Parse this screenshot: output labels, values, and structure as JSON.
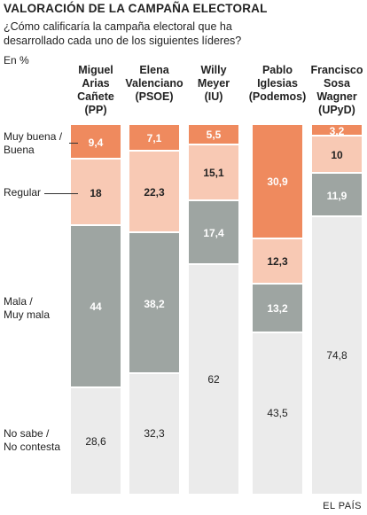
{
  "title": "VALORACIÓN DE LA CAMPAÑA ELECTORAL",
  "question": "¿Cómo calificaría la campaña electoral que ha desarrollado cada uno de los siguientes líderes?",
  "unit": "En %",
  "source": "EL PAÍS",
  "colors": {
    "muy_buena": "#ef8a5e",
    "regular": "#f8c9b4",
    "mala": "#9ea5a2",
    "no_sabe": "#ebebeb"
  },
  "row_labels": [
    "Muy buena /\nBuena",
    "Regular",
    "Mala /\nMuy mala",
    "No sabe /\nNo contesta"
  ],
  "chart_data": {
    "type": "bar",
    "stacked": true,
    "title": "VALORACIÓN DE LA CAMPAÑA ELECTORAL",
    "unit": "En %",
    "categories": [
      "Miguel\nArias\nCañete\n(PP)",
      "Elena\nValenciano\n(PSOE)",
      "Willy\nMeyer\n(IU)",
      "Pablo\nIglesias\n(Podemos)",
      "Francisco\nSosa\nWagner\n(UPyD)"
    ],
    "series": [
      {
        "name": "Muy buena / Buena",
        "values": [
          9.4,
          7.1,
          5.5,
          30.9,
          3.2
        ],
        "labels": [
          "9,4",
          "7,1",
          "5,5",
          "30,9",
          "3,2"
        ]
      },
      {
        "name": "Regular",
        "values": [
          18,
          22.3,
          15.1,
          12.3,
          10
        ],
        "labels": [
          "18",
          "22,3",
          "15,1",
          "12,3",
          "10"
        ]
      },
      {
        "name": "Mala / Muy mala",
        "values": [
          44,
          38.2,
          17.4,
          13.2,
          11.9
        ],
        "labels": [
          "44",
          "38,2",
          "17,4",
          "13,2",
          "11,9"
        ]
      },
      {
        "name": "No sabe / No contesta",
        "values": [
          28.6,
          32.3,
          62,
          43.5,
          74.8
        ],
        "labels": [
          "28,6",
          "32,3",
          "62",
          "43,5",
          "74,8"
        ]
      }
    ],
    "ylim": [
      0,
      100
    ]
  }
}
